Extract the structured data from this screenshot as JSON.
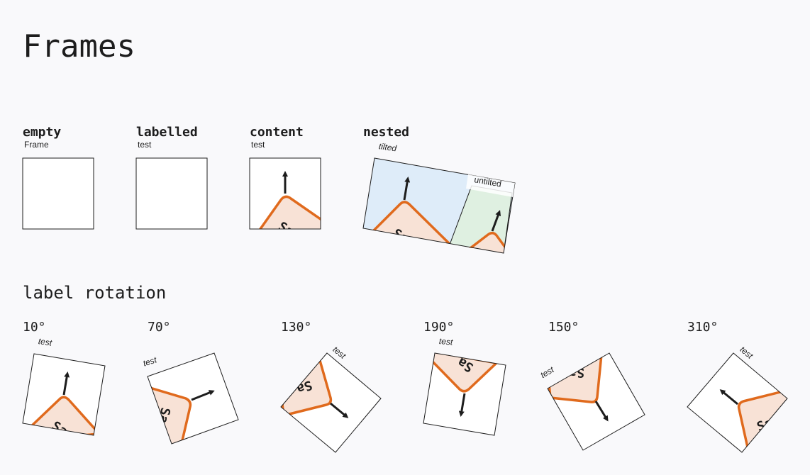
{
  "page": {
    "title": "Frames"
  },
  "demos": [
    {
      "name": "empty",
      "label": "Frame"
    },
    {
      "name": "labelled",
      "label": "test"
    },
    {
      "name": "content",
      "label": "test"
    },
    {
      "name": "nested",
      "label": "tilted",
      "inner_label": "untilted"
    }
  ],
  "rotation": {
    "title": "label rotation",
    "items": [
      {
        "angle": "10°",
        "label": "test"
      },
      {
        "angle": "70°",
        "label": "test"
      },
      {
        "angle": "130°",
        "label": "test"
      },
      {
        "angle": "190°",
        "label": "test"
      },
      {
        "angle": "150°",
        "label": "test"
      },
      {
        "angle": "310°",
        "label": "test"
      }
    ]
  },
  "shape_glyph": "Sa",
  "colors": {
    "stroke": "#1d1d1d",
    "accent": "#e06a1d",
    "accent_fill": "#f8e2d6",
    "tilted_fill": "#deecf9",
    "inner_fill": "#dff0e1",
    "frame_fill": "#ffffff"
  }
}
